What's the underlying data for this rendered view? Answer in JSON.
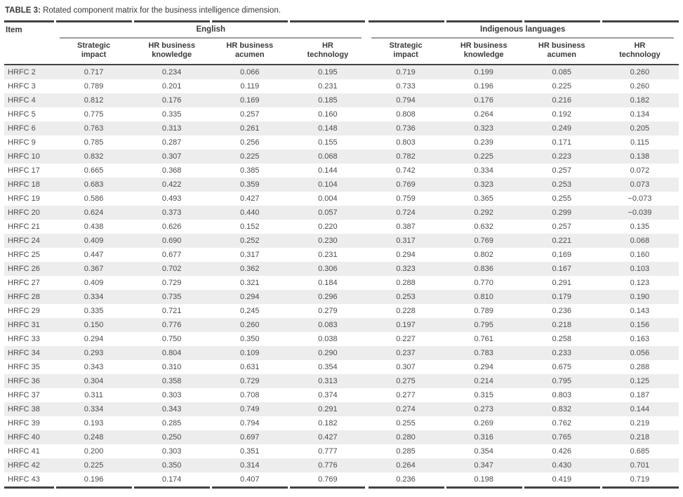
{
  "title": {
    "label": "TABLE 3:",
    "text": "Rotated component matrix for the business intelligence dimension."
  },
  "colors": {
    "stripe": "#ededed",
    "rule_dark": "#424242",
    "rule_gray": "#9d9d9d",
    "body_text": "#4c4c4c"
  },
  "table": {
    "item_header": "Item",
    "groups": [
      {
        "label": "English",
        "columns": [
          "Strategic\nimpact",
          "HR business\nknowledge",
          "HR business\nacumen",
          "HR\ntechnology"
        ]
      },
      {
        "label": "Indigenous languages",
        "columns": [
          "Strategic\nimpact",
          "HR business\nknowledge",
          "HR business\nacumen",
          "HR\ntechnology"
        ]
      }
    ],
    "rows": [
      {
        "item": "HRFC 2",
        "english": [
          "0.717",
          "0.234",
          "0.066",
          "0.195"
        ],
        "indigenous": [
          "0.719",
          "0.199",
          "0.085",
          "0.260"
        ]
      },
      {
        "item": "HRFC 3",
        "english": [
          "0.789",
          "0.201",
          "0.119",
          "0.231"
        ],
        "indigenous": [
          "0.733",
          "0.196",
          "0.225",
          "0.260"
        ]
      },
      {
        "item": "HRFC 4",
        "english": [
          "0.812",
          "0.176",
          "0.169",
          "0.185"
        ],
        "indigenous": [
          "0.794",
          "0.176",
          "0.216",
          "0.182"
        ]
      },
      {
        "item": "HRFC 5",
        "english": [
          "0.775",
          "0.335",
          "0.257",
          "0.160"
        ],
        "indigenous": [
          "0.808",
          "0.264",
          "0.192",
          "0.134"
        ]
      },
      {
        "item": "HRFC 6",
        "english": [
          "0.763",
          "0.313",
          "0.261",
          "0.148"
        ],
        "indigenous": [
          "0.736",
          "0.323",
          "0.249",
          "0.205"
        ]
      },
      {
        "item": "HRFC 9",
        "english": [
          "0.785",
          "0.287",
          "0.256",
          "0.155"
        ],
        "indigenous": [
          "0.803",
          "0.239",
          "0.171",
          "0.115"
        ]
      },
      {
        "item": "HRFC 10",
        "english": [
          "0.832",
          "0.307",
          "0.225",
          "0.068"
        ],
        "indigenous": [
          "0.782",
          "0.225",
          "0.223",
          "0.138"
        ]
      },
      {
        "item": "HRFC 17",
        "english": [
          "0.665",
          "0.368",
          "0.385",
          "0.144"
        ],
        "indigenous": [
          "0.742",
          "0.334",
          "0.257",
          "0.072"
        ]
      },
      {
        "item": "HRFC 18",
        "english": [
          "0.683",
          "0.422",
          "0.359",
          "0.104"
        ],
        "indigenous": [
          "0.769",
          "0.323",
          "0.253",
          "0.073"
        ]
      },
      {
        "item": "HRFC 19",
        "english": [
          "0.586",
          "0.493",
          "0.427",
          "0.004"
        ],
        "indigenous": [
          "0.759",
          "0.365",
          "0.255",
          "−0.073"
        ]
      },
      {
        "item": "HRFC 20",
        "english": [
          "0.624",
          "0.373",
          "0.440",
          "0.057"
        ],
        "indigenous": [
          "0.724",
          "0.292",
          "0.299",
          "−0.039"
        ]
      },
      {
        "item": "HRFC 21",
        "english": [
          "0.438",
          "0.626",
          "0.152",
          "0.220"
        ],
        "indigenous": [
          "0.387",
          "0.632",
          "0.257",
          "0.135"
        ]
      },
      {
        "item": "HRFC 24",
        "english": [
          "0.409",
          "0.690",
          "0.252",
          "0.230"
        ],
        "indigenous": [
          "0.317",
          "0.769",
          "0.221",
          "0.068"
        ]
      },
      {
        "item": "HRFC 25",
        "english": [
          "0.447",
          "0.677",
          "0.317",
          "0.231"
        ],
        "indigenous": [
          "0.294",
          "0.802",
          "0.169",
          "0.160"
        ]
      },
      {
        "item": "HRFC 26",
        "english": [
          "0.367",
          "0.702",
          "0.362",
          "0.306"
        ],
        "indigenous": [
          "0.323",
          "0.836",
          "0.167",
          "0.103"
        ]
      },
      {
        "item": "HRFC 27",
        "english": [
          "0.409",
          "0.729",
          "0.321",
          "0.184"
        ],
        "indigenous": [
          "0.288",
          "0.770",
          "0.291",
          "0.123"
        ]
      },
      {
        "item": "HRFC 28",
        "english": [
          "0.334",
          "0.735",
          "0.294",
          "0.296"
        ],
        "indigenous": [
          "0.253",
          "0.810",
          "0.179",
          "0.190"
        ]
      },
      {
        "item": "HRFC 29",
        "english": [
          "0.335",
          "0.721",
          "0.245",
          "0.279"
        ],
        "indigenous": [
          "0.228",
          "0.789",
          "0.236",
          "0.143"
        ]
      },
      {
        "item": "HRFC 31",
        "english": [
          "0.150",
          "0.776",
          "0.260",
          "0.083"
        ],
        "indigenous": [
          "0.197",
          "0.795",
          "0.218",
          "0.156"
        ]
      },
      {
        "item": "HRFC 33",
        "english": [
          "0.294",
          "0.750",
          "0.350",
          "0.038"
        ],
        "indigenous": [
          "0.227",
          "0.761",
          "0.258",
          "0.163"
        ]
      },
      {
        "item": "HRFC 34",
        "english": [
          "0.293",
          "0.804",
          "0.109",
          "0.290"
        ],
        "indigenous": [
          "0.237",
          "0.783",
          "0.233",
          "0.056"
        ]
      },
      {
        "item": "HRFC 35",
        "english": [
          "0.343",
          "0.310",
          "0.631",
          "0.354"
        ],
        "indigenous": [
          "0.307",
          "0.294",
          "0.675",
          "0.288"
        ]
      },
      {
        "item": "HRFC 36",
        "english": [
          "0.304",
          "0.358",
          "0.729",
          "0.313"
        ],
        "indigenous": [
          "0.275",
          "0.214",
          "0.795",
          "0.125"
        ]
      },
      {
        "item": "HRFC 37",
        "english": [
          "0.311",
          "0.303",
          "0.708",
          "0.374"
        ],
        "indigenous": [
          "0.277",
          "0.315",
          "0.803",
          "0.187"
        ]
      },
      {
        "item": "HRFC 38",
        "english": [
          "0.334",
          "0.343",
          "0.749",
          "0.291"
        ],
        "indigenous": [
          "0.274",
          "0.273",
          "0.832",
          "0.144"
        ]
      },
      {
        "item": "HRFC 39",
        "english": [
          "0.193",
          "0.285",
          "0.794",
          "0.182"
        ],
        "indigenous": [
          "0.255",
          "0.269",
          "0.762",
          "0.219"
        ]
      },
      {
        "item": "HRFC 40",
        "english": [
          "0.248",
          "0.250",
          "0.697",
          "0.427"
        ],
        "indigenous": [
          "0.280",
          "0.316",
          "0.765",
          "0.218"
        ]
      },
      {
        "item": "HRFC 41",
        "english": [
          "0.200",
          "0.303",
          "0.351",
          "0.777"
        ],
        "indigenous": [
          "0.285",
          "0.354",
          "0.426",
          "0.685"
        ]
      },
      {
        "item": "HRFC 42",
        "english": [
          "0.225",
          "0.350",
          "0.314",
          "0.776"
        ],
        "indigenous": [
          "0.264",
          "0.347",
          "0.430",
          "0.701"
        ]
      },
      {
        "item": "HRFC 43",
        "english": [
          "0.196",
          "0.174",
          "0.407",
          "0.769"
        ],
        "indigenous": [
          "0.236",
          "0.198",
          "0.419",
          "0.719"
        ]
      }
    ]
  }
}
